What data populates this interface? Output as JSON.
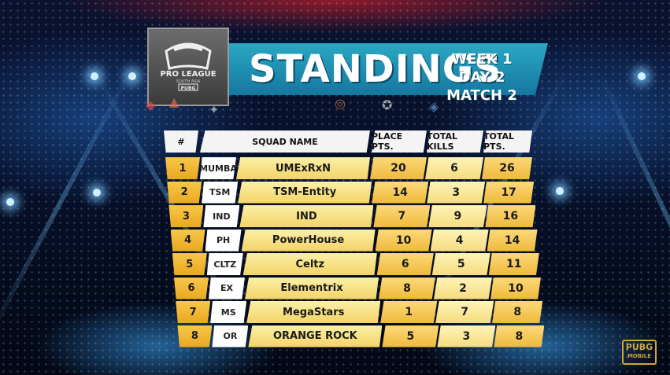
{
  "header": {
    "logo_text": "PRO LEAGUE SOUTH ASIA PUBG MOBILE",
    "title": "STANDINGS",
    "subtitle_line1": "WEEK 1 DAY 2",
    "subtitle_line2": "MATCH 2"
  },
  "table": {
    "columns": [
      "#",
      "SQUAD NAME",
      "PLACE PTS.",
      "TOTAL KILLS",
      "TOTAL PTS."
    ],
    "rows": [
      {
        "rank": "1",
        "logo": "MUMBA",
        "squad": "UMExRxN",
        "place_pts": "20",
        "kills": "6",
        "total": "26"
      },
      {
        "rank": "2",
        "logo": "TSM",
        "squad": "TSM-Entity",
        "place_pts": "14",
        "kills": "3",
        "total": "17"
      },
      {
        "rank": "3",
        "logo": "IND",
        "squad": "IND",
        "place_pts": "7",
        "kills": "9",
        "total": "16"
      },
      {
        "rank": "4",
        "logo": "PH",
        "squad": "PowerHouse",
        "place_pts": "10",
        "kills": "4",
        "total": "14"
      },
      {
        "rank": "5",
        "logo": "CLTZ",
        "squad": "Celtz",
        "place_pts": "6",
        "kills": "5",
        "total": "11"
      },
      {
        "rank": "6",
        "logo": "EX",
        "squad": "Elementrix",
        "place_pts": "8",
        "kills": "2",
        "total": "10"
      },
      {
        "rank": "7",
        "logo": "MS",
        "squad": "MegaStars",
        "place_pts": "1",
        "kills": "7",
        "total": "8"
      },
      {
        "rank": "8",
        "logo": "OR",
        "squad": "ORANGE ROCK",
        "place_pts": "5",
        "kills": "3",
        "total": "8"
      }
    ]
  },
  "corner_logo": {
    "line1": "PUBG",
    "line2": "MOBILE"
  },
  "colors": {
    "banner": "#1f93b8",
    "rank": "#f0b93a",
    "name": "#f8e28a",
    "header_row": "#f4f4f4"
  }
}
